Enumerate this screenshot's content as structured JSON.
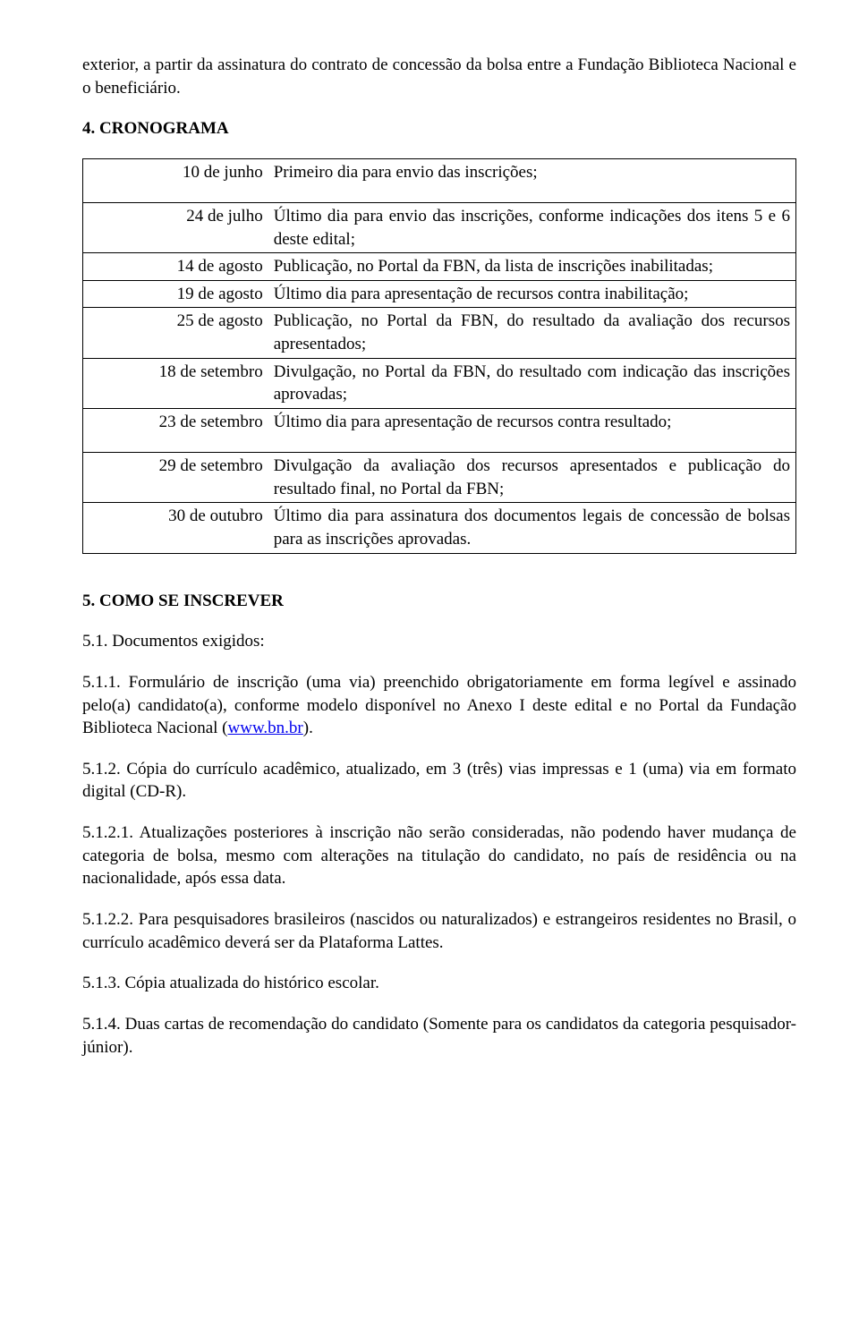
{
  "intro": "exterior, a partir da assinatura do contrato de concessão da bolsa entre a Fundação Biblioteca Nacional e o beneficiário.",
  "s4": {
    "title": "4. CRONOGRAMA",
    "rows": [
      {
        "date": "10 de junho",
        "desc": "Primeiro dia para envio das inscrições;",
        "tall": true
      },
      {
        "date": "24 de julho",
        "desc": "Último dia para envio das inscrições, conforme indicações dos itens 5 e 6 deste edital;"
      },
      {
        "date": "14 de agosto",
        "desc": "Publicação, no Portal da FBN, da lista de inscrições inabilitadas;"
      },
      {
        "date": "19 de agosto",
        "desc": "Último dia para apresentação de recursos contra inabilitação;"
      },
      {
        "date": "25 de agosto",
        "desc": "Publicação, no Portal da FBN, do resultado da avaliação dos recursos apresentados;"
      },
      {
        "date": "18 de setembro",
        "desc": "Divulgação, no Portal da FBN, do resultado com indicação das inscrições aprovadas;"
      },
      {
        "date": "23 de setembro",
        "desc": "Último dia para apresentação de recursos contra resultado;",
        "tall": true
      },
      {
        "date": "29 de setembro",
        "desc": "Divulgação da avaliação dos recursos apresentados e publicação do resultado final, no Portal da FBN;"
      },
      {
        "date": "30 de outubro",
        "desc": "Último dia para assinatura dos documentos legais de concessão de bolsas para as inscrições aprovadas."
      }
    ]
  },
  "s5": {
    "title": "5. COMO SE INSCREVER",
    "p1": "5.1. Documentos exigidos:",
    "p511_a": "5.1.1. Formulário de inscrição (uma via) preenchido obrigatoriamente em forma legível e assinado pelo(a) candidato(a), conforme modelo disponível no Anexo I deste edital e no Portal da Fundação Biblioteca Nacional (",
    "p511_link": "www.bn.br",
    "p511_b": ").",
    "p512": "5.1.2. Cópia do currículo acadêmico, atualizado, em 3 (três) vias impressas e 1 (uma) via em formato digital (CD-R).",
    "p5121": "5.1.2.1. Atualizações posteriores à inscrição não serão consideradas, não podendo haver mudança de categoria de bolsa, mesmo com alterações na titulação do candidato, no país de residência ou na nacionalidade, após essa data.",
    "p5122": "5.1.2.2. Para pesquisadores brasileiros (nascidos ou naturalizados) e estrangeiros residentes no Brasil, o currículo acadêmico deverá ser da Plataforma Lattes.",
    "p513": "5.1.3. Cópia atualizada do histórico escolar.",
    "p514": "5.1.4. Duas cartas de recomendação do candidato (Somente para os candidatos da categoria pesquisador-júnior)."
  }
}
